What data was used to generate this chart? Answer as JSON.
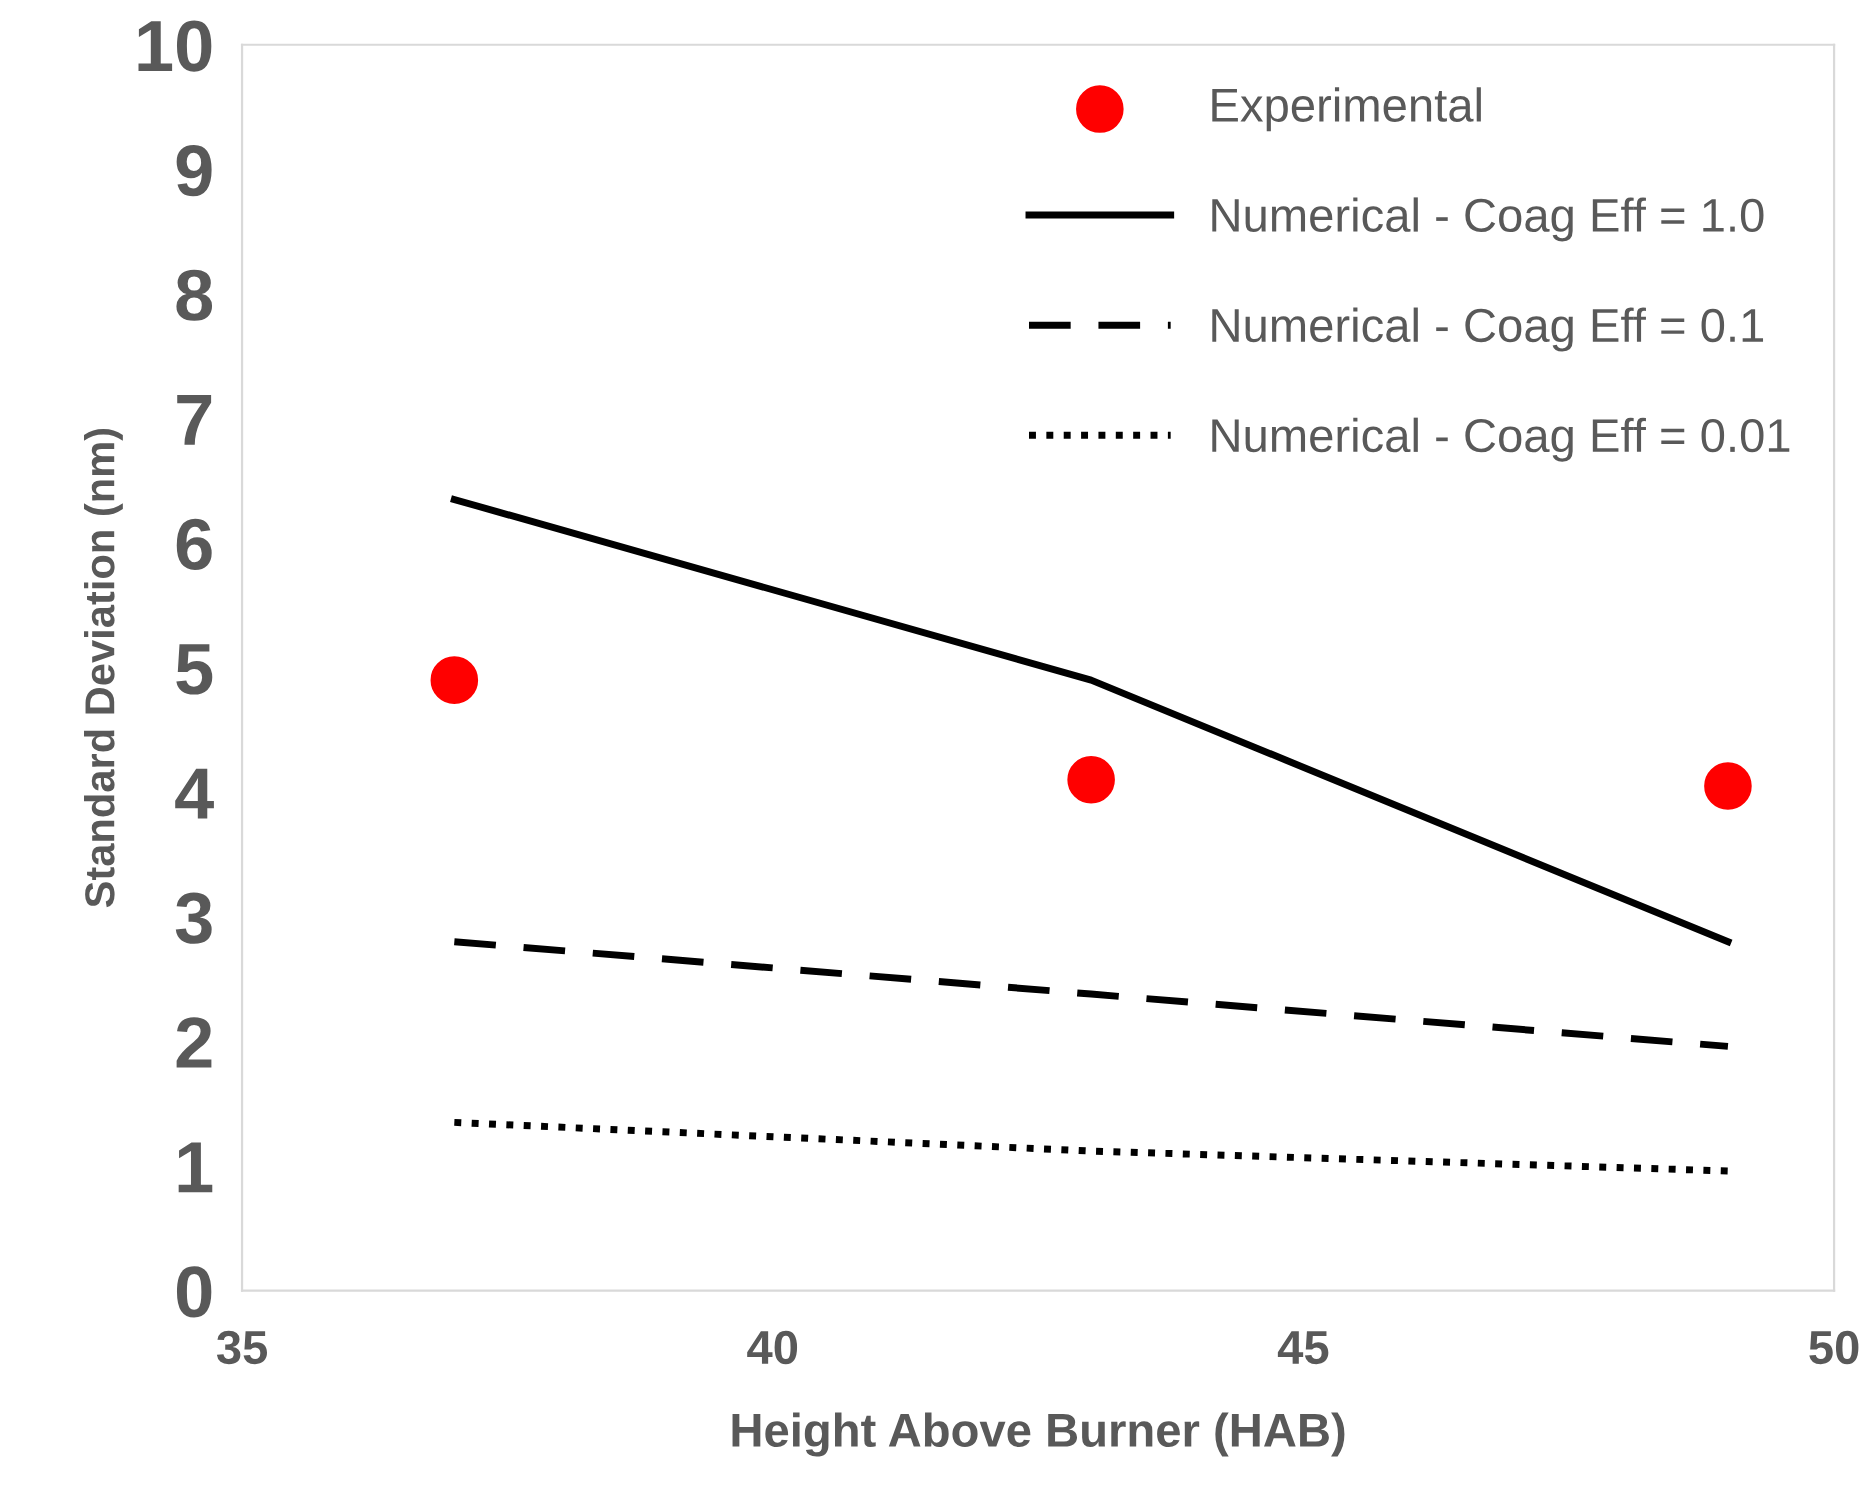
{
  "chart_data": {
    "type": "line",
    "xlabel": "Height Above Burner (HAB)",
    "ylabel": "Standard Deviation (nm)",
    "x": [
      37,
      43,
      49
    ],
    "series": [
      {
        "name": "Experimental",
        "type": "scatter",
        "color": "#ff0000",
        "marker": "circle",
        "values": [
          4.9,
          4.1,
          4.05
        ]
      },
      {
        "name": "Numerical - Coag Eff = 1.0",
        "color": "#000000",
        "line_style": "solid",
        "marker": "none",
        "values": [
          6.35,
          4.9,
          2.8
        ]
      },
      {
        "name": "Numerical - Coag Eff = 0.1",
        "color": "#000000",
        "line_style": "dashed",
        "marker": "none",
        "values": [
          2.8,
          2.38,
          1.96
        ]
      },
      {
        "name": "Numerical - Coag Eff = 0.01",
        "color": "#000000",
        "line_style": "dotted",
        "marker": "none",
        "values": [
          1.35,
          1.12,
          0.96
        ]
      }
    ],
    "xlim": [
      35,
      50
    ],
    "xticks": [
      35,
      40,
      45,
      50
    ],
    "ylim": [
      0,
      10
    ],
    "yticks": [
      0,
      1,
      2,
      3,
      4,
      5,
      6,
      7,
      8,
      9,
      10
    ],
    "grid": false,
    "legend": "top right"
  }
}
